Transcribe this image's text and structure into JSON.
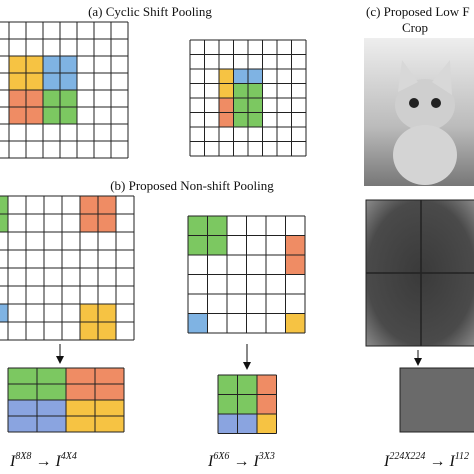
{
  "panels": [
    {
      "title": "(a) Cyclic Shift Pooling"
    },
    {
      "title": "(b) Proposed Non-shift Pooling"
    },
    {
      "title": "(c) Proposed Low F",
      "subtitle": "Crop"
    }
  ],
  "formulas": [
    {
      "from_base": "I",
      "from_exp": "8X8",
      "arrow": "→",
      "to_base": "I",
      "to_exp": "4X4"
    },
    {
      "from_base": "I",
      "from_exp": "6X6",
      "arrow": "→",
      "to_base": "I",
      "to_exp": "3X3"
    },
    {
      "from_base": "I",
      "from_exp": "224X224",
      "arrow": "→",
      "to_base": "I",
      "to_exp": "112"
    }
  ]
}
